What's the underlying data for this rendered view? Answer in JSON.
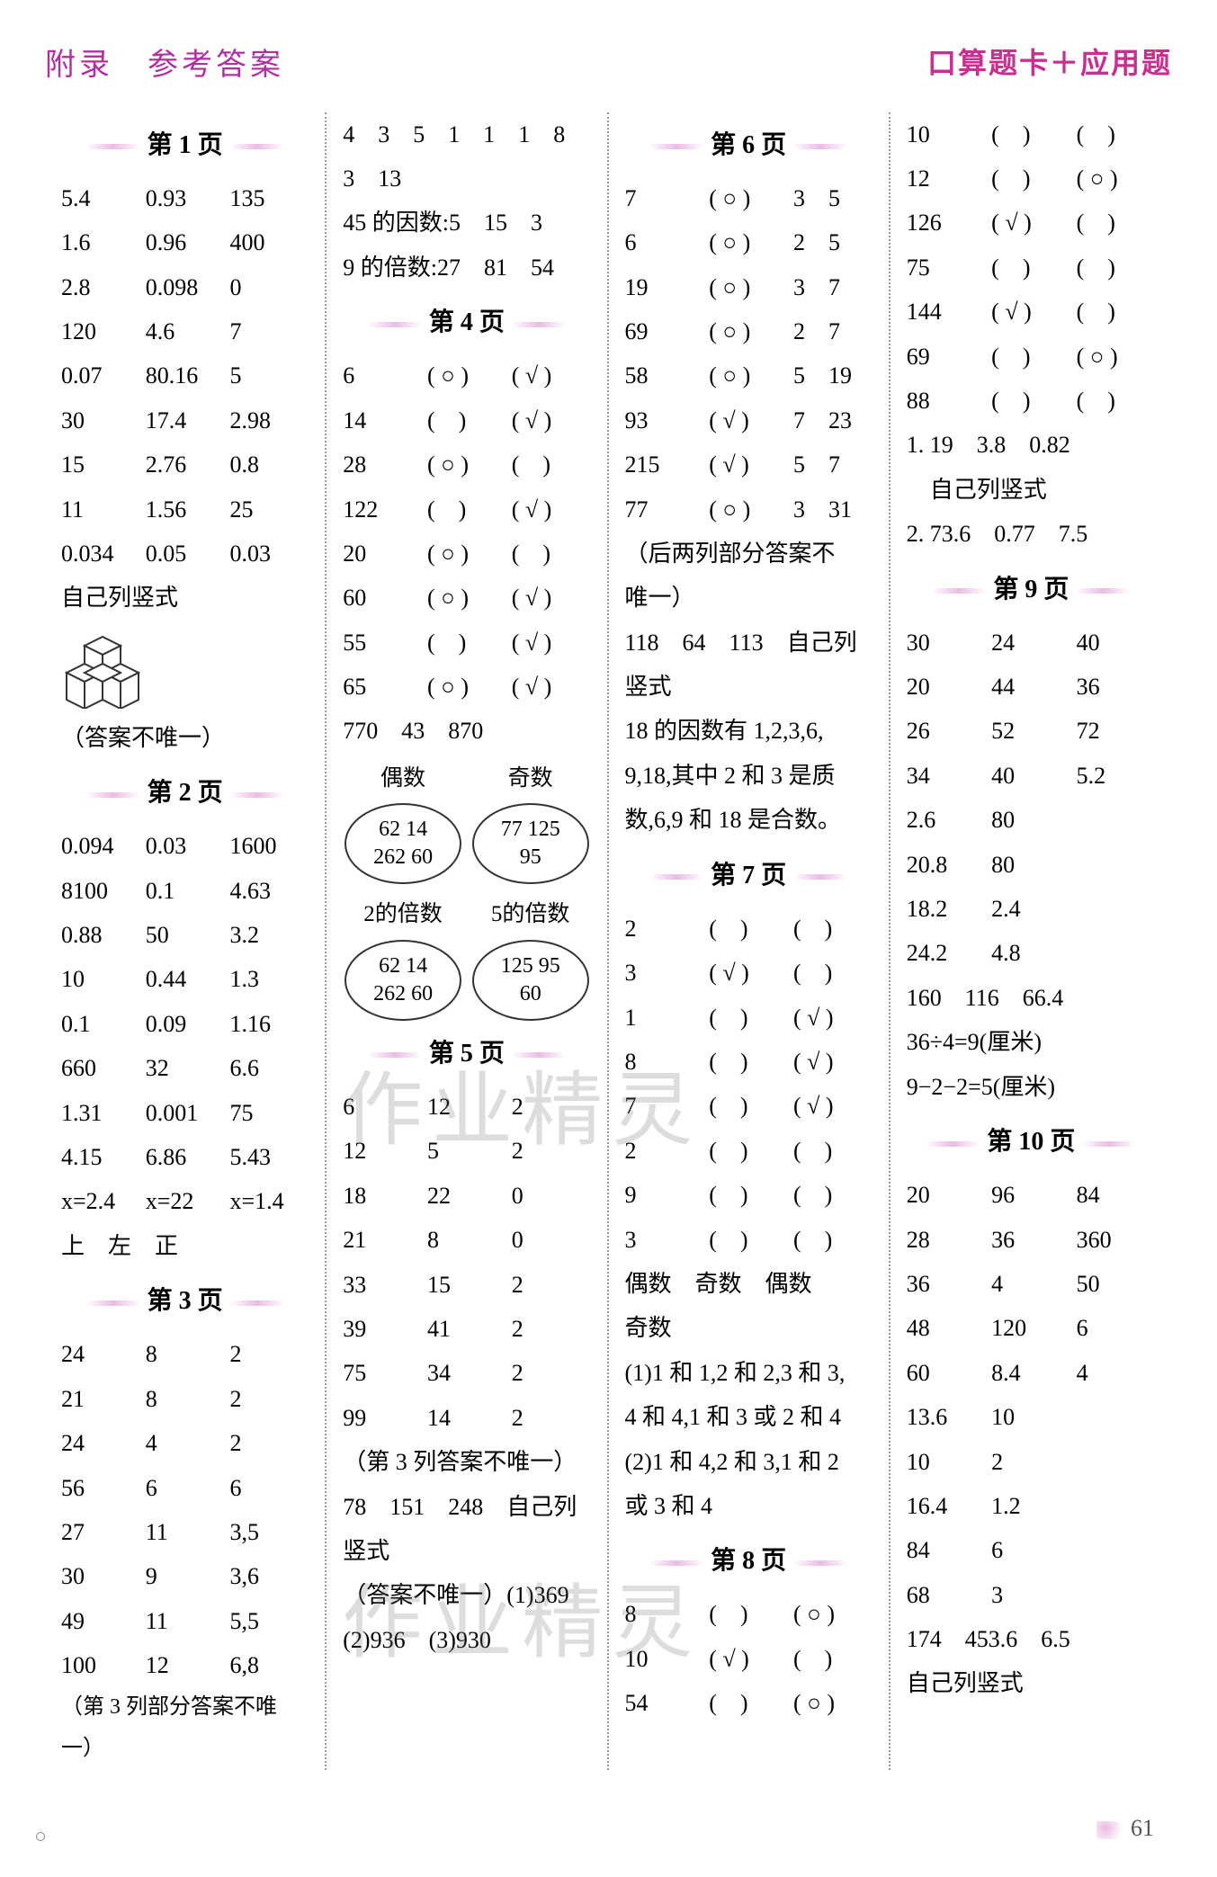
{
  "header": {
    "appendix": "附录　参考答案",
    "book": "口算题卡＋应用题"
  },
  "page_number": "61",
  "watermark": "作业精灵",
  "col1": {
    "p1": {
      "title": "第 1 页",
      "rows": [
        [
          "5.4",
          "0.93",
          "135"
        ],
        [
          "1.6",
          "0.96",
          "400"
        ],
        [
          "2.8",
          "0.098",
          "0"
        ],
        [
          "120",
          "4.6",
          "7"
        ],
        [
          "0.07",
          "80.16",
          "5"
        ],
        [
          "30",
          "17.4",
          "2.98"
        ],
        [
          "15",
          "2.76",
          "0.8"
        ],
        [
          "11",
          "1.56",
          "25"
        ],
        [
          "0.034",
          "0.05",
          "0.03"
        ]
      ],
      "note1": "自己列竖式",
      "note2": "（答案不唯一）"
    },
    "p2": {
      "title": "第 2 页",
      "rows": [
        [
          "0.094",
          "0.03",
          "1600"
        ],
        [
          "8100",
          "0.1",
          "4.63"
        ],
        [
          "0.88",
          "50",
          "3.2"
        ],
        [
          "10",
          "0.44",
          "1.3"
        ],
        [
          "0.1",
          "0.09",
          "1.16"
        ],
        [
          "660",
          "32",
          "6.6"
        ],
        [
          "1.31",
          "0.001",
          "75"
        ],
        [
          "4.15",
          "6.86",
          "5.43"
        ],
        [
          "x=2.4",
          "x=22",
          "x=1.4"
        ]
      ],
      "tail": "上　左　正"
    },
    "p3": {
      "title": "第 3 页",
      "rows": [
        [
          "24",
          "8",
          "2"
        ],
        [
          "21",
          "8",
          "2"
        ],
        [
          "24",
          "4",
          "2"
        ],
        [
          "56",
          "6",
          "6"
        ],
        [
          "27",
          "11",
          "3,5"
        ],
        [
          "30",
          "9",
          "3,6"
        ],
        [
          "49",
          "11",
          "5,5"
        ],
        [
          "100",
          "12",
          "6,8"
        ]
      ],
      "tail": "（第 3 列部分答案不唯一）"
    }
  },
  "col2": {
    "cont": [
      "4　3　5　1　1　1　8",
      "3　13",
      "45 的因数:5　15　3",
      "9 的倍数:27　81　54"
    ],
    "p4": {
      "title": "第 4 页",
      "rows": [
        [
          "6",
          "( ○ )",
          "( √ )"
        ],
        [
          "14",
          "(　)",
          "( √ )"
        ],
        [
          "28",
          "( ○ )",
          "(　)"
        ],
        [
          "122",
          "(　)",
          "( √ )"
        ],
        [
          "20",
          "( ○ )",
          "(　)"
        ],
        [
          "60",
          "( ○ )",
          "( √ )"
        ],
        [
          "55",
          "(　)",
          "( √ )"
        ],
        [
          "65",
          "( ○ )",
          "( √ )"
        ]
      ],
      "line": "770　43　870",
      "venn1_labels": [
        "偶数",
        "奇数"
      ],
      "venn1_left": [
        "62 14",
        "262 60"
      ],
      "venn1_right": [
        "77 125",
        "95"
      ],
      "venn2_labels": [
        "2的倍数",
        "5的倍数"
      ],
      "venn2_left": [
        "62 14",
        "262 60"
      ],
      "venn2_right": [
        "125 95",
        "60"
      ]
    },
    "p5": {
      "title": "第 5 页",
      "rows": [
        [
          "6",
          "12",
          "2"
        ],
        [
          "12",
          "5",
          "2"
        ],
        [
          "18",
          "22",
          "0"
        ],
        [
          "21",
          "8",
          "0"
        ],
        [
          "33",
          "15",
          "2"
        ],
        [
          "39",
          "41",
          "2"
        ],
        [
          "75",
          "34",
          "2"
        ],
        [
          "99",
          "14",
          "2"
        ]
      ],
      "tail1": "（第 3 列答案不唯一）",
      "tail2": "78　151　248　自己列",
      "tail3": "竖式",
      "tail4": "（答案不唯一）(1)369",
      "tail5": "(2)936　(3)930"
    }
  },
  "col3": {
    "p6": {
      "title": "第 6 页",
      "rows": [
        [
          "7",
          "( ○ )",
          "3　5"
        ],
        [
          "6",
          "( ○ )",
          "2　5"
        ],
        [
          "19",
          "( ○ )",
          "3　7"
        ],
        [
          "69",
          "( ○ )",
          "2　7"
        ],
        [
          "58",
          "( ○ )",
          "5　19"
        ],
        [
          "93",
          "( √ )",
          "7　23"
        ],
        [
          "215",
          "( √ )",
          "5　7"
        ],
        [
          "77",
          "( ○ )",
          "3　31"
        ]
      ],
      "tail1": "（后两列部分答案不",
      "tail2": "唯一）",
      "tail3": "118　64　113　自己列",
      "tail4": "竖式",
      "tail5": "18 的因数有 1,2,3,6,",
      "tail6": "9,18,其中 2 和 3 是质",
      "tail7": "数,6,9 和 18 是合数。"
    },
    "p7": {
      "title": "第 7 页",
      "rows": [
        [
          "2",
          "(　)",
          "(　)"
        ],
        [
          "3",
          "( √ )",
          "(　)"
        ],
        [
          "1",
          "(　)",
          "( √ )"
        ],
        [
          "8",
          "(　)",
          "( √ )"
        ],
        [
          "7",
          "(　)",
          "( √ )"
        ],
        [
          "2",
          "(　)",
          "(　)"
        ],
        [
          "9",
          "(　)",
          "(　)"
        ],
        [
          "3",
          "(　)",
          "(　)"
        ]
      ],
      "tail1": "偶数　奇数　偶数",
      "tail2": "奇数",
      "tail3": "(1)1 和 1,2 和 2,3 和 3,",
      "tail4": "4 和 4,1 和 3 或 2 和 4",
      "tail5": "(2)1 和 4,2 和 3,1 和 2",
      "tail6": "或 3 和 4"
    },
    "p8": {
      "title": "第 8 页",
      "rows": [
        [
          "8",
          "(　)",
          "( ○ )"
        ],
        [
          "10",
          "( √ )",
          "(　)"
        ],
        [
          "54",
          "(　)",
          "( ○ )"
        ]
      ]
    }
  },
  "col4": {
    "cont_rows": [
      [
        "10",
        "(　)",
        "(　)"
      ],
      [
        "12",
        "(　)",
        "( ○ )"
      ],
      [
        "126",
        "( √ )",
        "(　)"
      ],
      [
        "75",
        "(　)",
        "(　)"
      ],
      [
        "144",
        "( √ )",
        "(　)"
      ],
      [
        "69",
        "(　)",
        "( ○ )"
      ],
      [
        "88",
        "(　)",
        "(　)"
      ]
    ],
    "cont_line1": "1. 19　3.8　0.82",
    "cont_line2": "　自己列竖式",
    "cont_line3": "2. 73.6　0.77　7.5",
    "p9": {
      "title": "第 9 页",
      "rows3": [
        [
          "30",
          "24",
          "40"
        ],
        [
          "20",
          "44",
          "36"
        ],
        [
          "26",
          "52",
          "72"
        ],
        [
          "34",
          "40",
          "5.2"
        ]
      ],
      "rows2": [
        [
          "2.6",
          "80"
        ],
        [
          "20.8",
          "80"
        ],
        [
          "18.2",
          "2.4"
        ],
        [
          "24.2",
          "4.8"
        ]
      ],
      "line1": "160　116　66.4",
      "line2": "36÷4=9(厘米)",
      "line3": "9−2−2=5(厘米)"
    },
    "p10": {
      "title": "第 10 页",
      "rows3": [
        [
          "20",
          "96",
          "84"
        ],
        [
          "28",
          "36",
          "360"
        ],
        [
          "36",
          "4",
          "50"
        ],
        [
          "48",
          "120",
          "6"
        ],
        [
          "60",
          "8.4",
          "4"
        ]
      ],
      "rows2": [
        [
          "13.6",
          "10"
        ],
        [
          "10",
          "2"
        ],
        [
          "16.4",
          "1.2"
        ],
        [
          "84",
          "6"
        ],
        [
          "68",
          "3"
        ]
      ],
      "line1": "174　453.6　6.5",
      "line2": "自己列竖式"
    }
  }
}
